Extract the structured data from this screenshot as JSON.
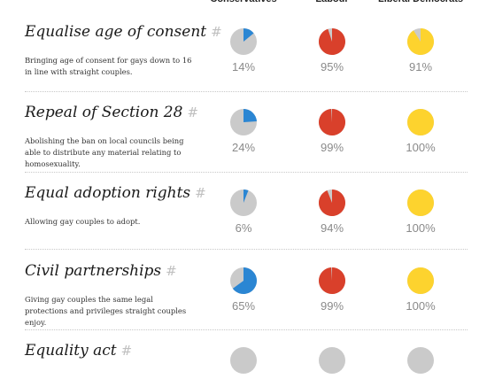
{
  "colors": {
    "pie_base": "#cacaca",
    "conservatives": "#2b86d3",
    "labour": "#d9402b",
    "liberal_democrats": "#fdd32e"
  },
  "chart_data": {
    "type": "pie",
    "parties": [
      {
        "key": "conservatives",
        "label": "Conservatives"
      },
      {
        "key": "labour",
        "label": "Labour"
      },
      {
        "key": "liberal_democrats",
        "label": "Liberal Democrats"
      }
    ],
    "rows": [
      {
        "title": "Equalise age of consent",
        "hash": "#",
        "description": "Bringing age of consent for gays down to 16 in line with straight couples.",
        "values": [
          14,
          95,
          91
        ],
        "labels": [
          "14%",
          "95%",
          "91%"
        ]
      },
      {
        "title": "Repeal of Section 28",
        "hash": "#",
        "description": "Abolishing the ban on local councils being able to distribute any material relating to homosexuality.",
        "values": [
          24,
          99,
          100
        ],
        "labels": [
          "24%",
          "99%",
          "100%"
        ]
      },
      {
        "title": "Equal adoption rights",
        "hash": "#",
        "description": "Allowing gay couples to adopt.",
        "values": [
          6,
          94,
          100
        ],
        "labels": [
          "6%",
          "94%",
          "100%"
        ]
      },
      {
        "title": "Civil partnerships",
        "hash": "#",
        "description": "Giving gay couples the same legal protections and privileges straight couples enjoy.",
        "values": [
          65,
          99,
          100
        ],
        "labels": [
          "65%",
          "99%",
          "100%"
        ]
      },
      {
        "title": "Equality act",
        "hash": "#",
        "description": "",
        "values": [],
        "labels": [
          "",
          "",
          ""
        ]
      }
    ]
  }
}
